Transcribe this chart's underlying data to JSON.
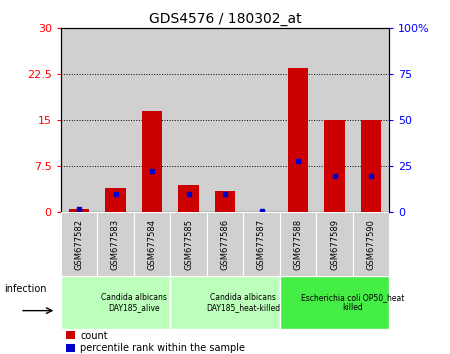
{
  "title": "GDS4576 / 180302_at",
  "samples": [
    "GSM677582",
    "GSM677583",
    "GSM677584",
    "GSM677585",
    "GSM677586",
    "GSM677587",
    "GSM677588",
    "GSM677589",
    "GSM677590"
  ],
  "count_values": [
    0.5,
    4.0,
    16.5,
    4.5,
    3.5,
    0.05,
    23.5,
    15.0,
    15.0
  ],
  "percentile_values": [
    2.0,
    10.0,
    22.5,
    10.0,
    10.0,
    0.5,
    28.0,
    20.0,
    20.0
  ],
  "left_ylim": [
    0,
    30
  ],
  "right_ylim": [
    0,
    100
  ],
  "left_yticks": [
    0,
    7.5,
    15,
    22.5,
    30
  ],
  "left_yticklabels": [
    "0",
    "7.5",
    "15",
    "22.5",
    "30"
  ],
  "right_yticks": [
    0,
    25,
    50,
    75,
    100
  ],
  "right_yticklabels": [
    "0",
    "25",
    "50",
    "75",
    "100%"
  ],
  "bar_color": "#cc0000",
  "dot_color": "#0000cc",
  "group_configs": [
    {
      "start": 0,
      "end": 3,
      "color": "#bbffbb",
      "label": "Candida albicans\nDAY185_alive"
    },
    {
      "start": 3,
      "end": 6,
      "color": "#bbffbb",
      "label": "Candida albicans\nDAY185_heat-killed"
    },
    {
      "start": 6,
      "end": 9,
      "color": "#44ee44",
      "label": "Escherichia coli OP50_heat\nkilled"
    }
  ],
  "infection_label": "infection",
  "legend_count": "count",
  "legend_percentile": "percentile rank within the sample",
  "col_bg_color": "#d0d0d0",
  "plot_bg_color": "#ffffff",
  "bar_width": 0.55
}
